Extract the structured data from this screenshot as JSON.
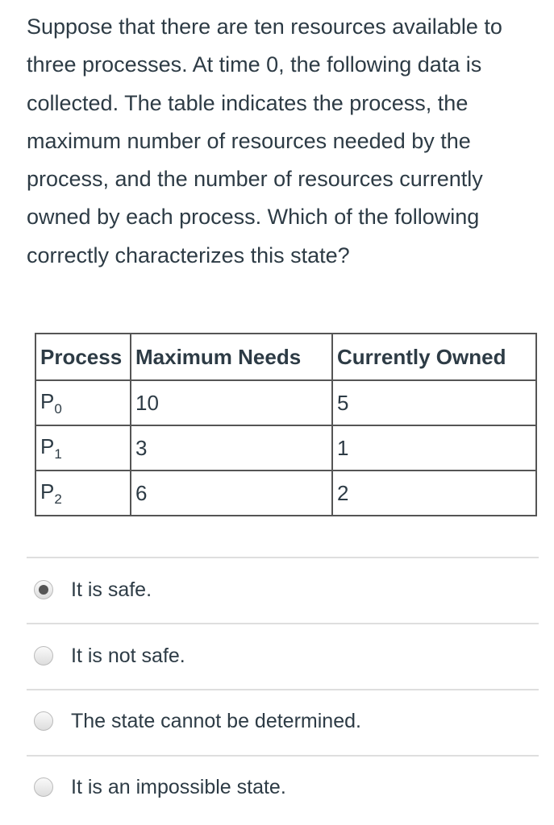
{
  "question": "Suppose that there are ten resources available to three processes. At time 0, the following data is collected. The table indicates the process, the maximum number of resources needed by the process, and the number of resources currently owned by each process. Which of the following correctly characterizes this state?",
  "table": {
    "headers": [
      "Process",
      "Maximum Needs",
      "Currently Owned"
    ],
    "rows": [
      {
        "process": "P",
        "sub": "0",
        "max": "10",
        "owned": "5"
      },
      {
        "process": "P",
        "sub": "1",
        "max": "3",
        "owned": "1"
      },
      {
        "process": "P",
        "sub": "2",
        "max": "6",
        "owned": "2"
      }
    ]
  },
  "options": [
    {
      "label": "It is safe.",
      "selected": true
    },
    {
      "label": "It is not safe.",
      "selected": false
    },
    {
      "label": "The state cannot be determined.",
      "selected": false
    },
    {
      "label": "It is an impossible state.",
      "selected": false
    }
  ]
}
